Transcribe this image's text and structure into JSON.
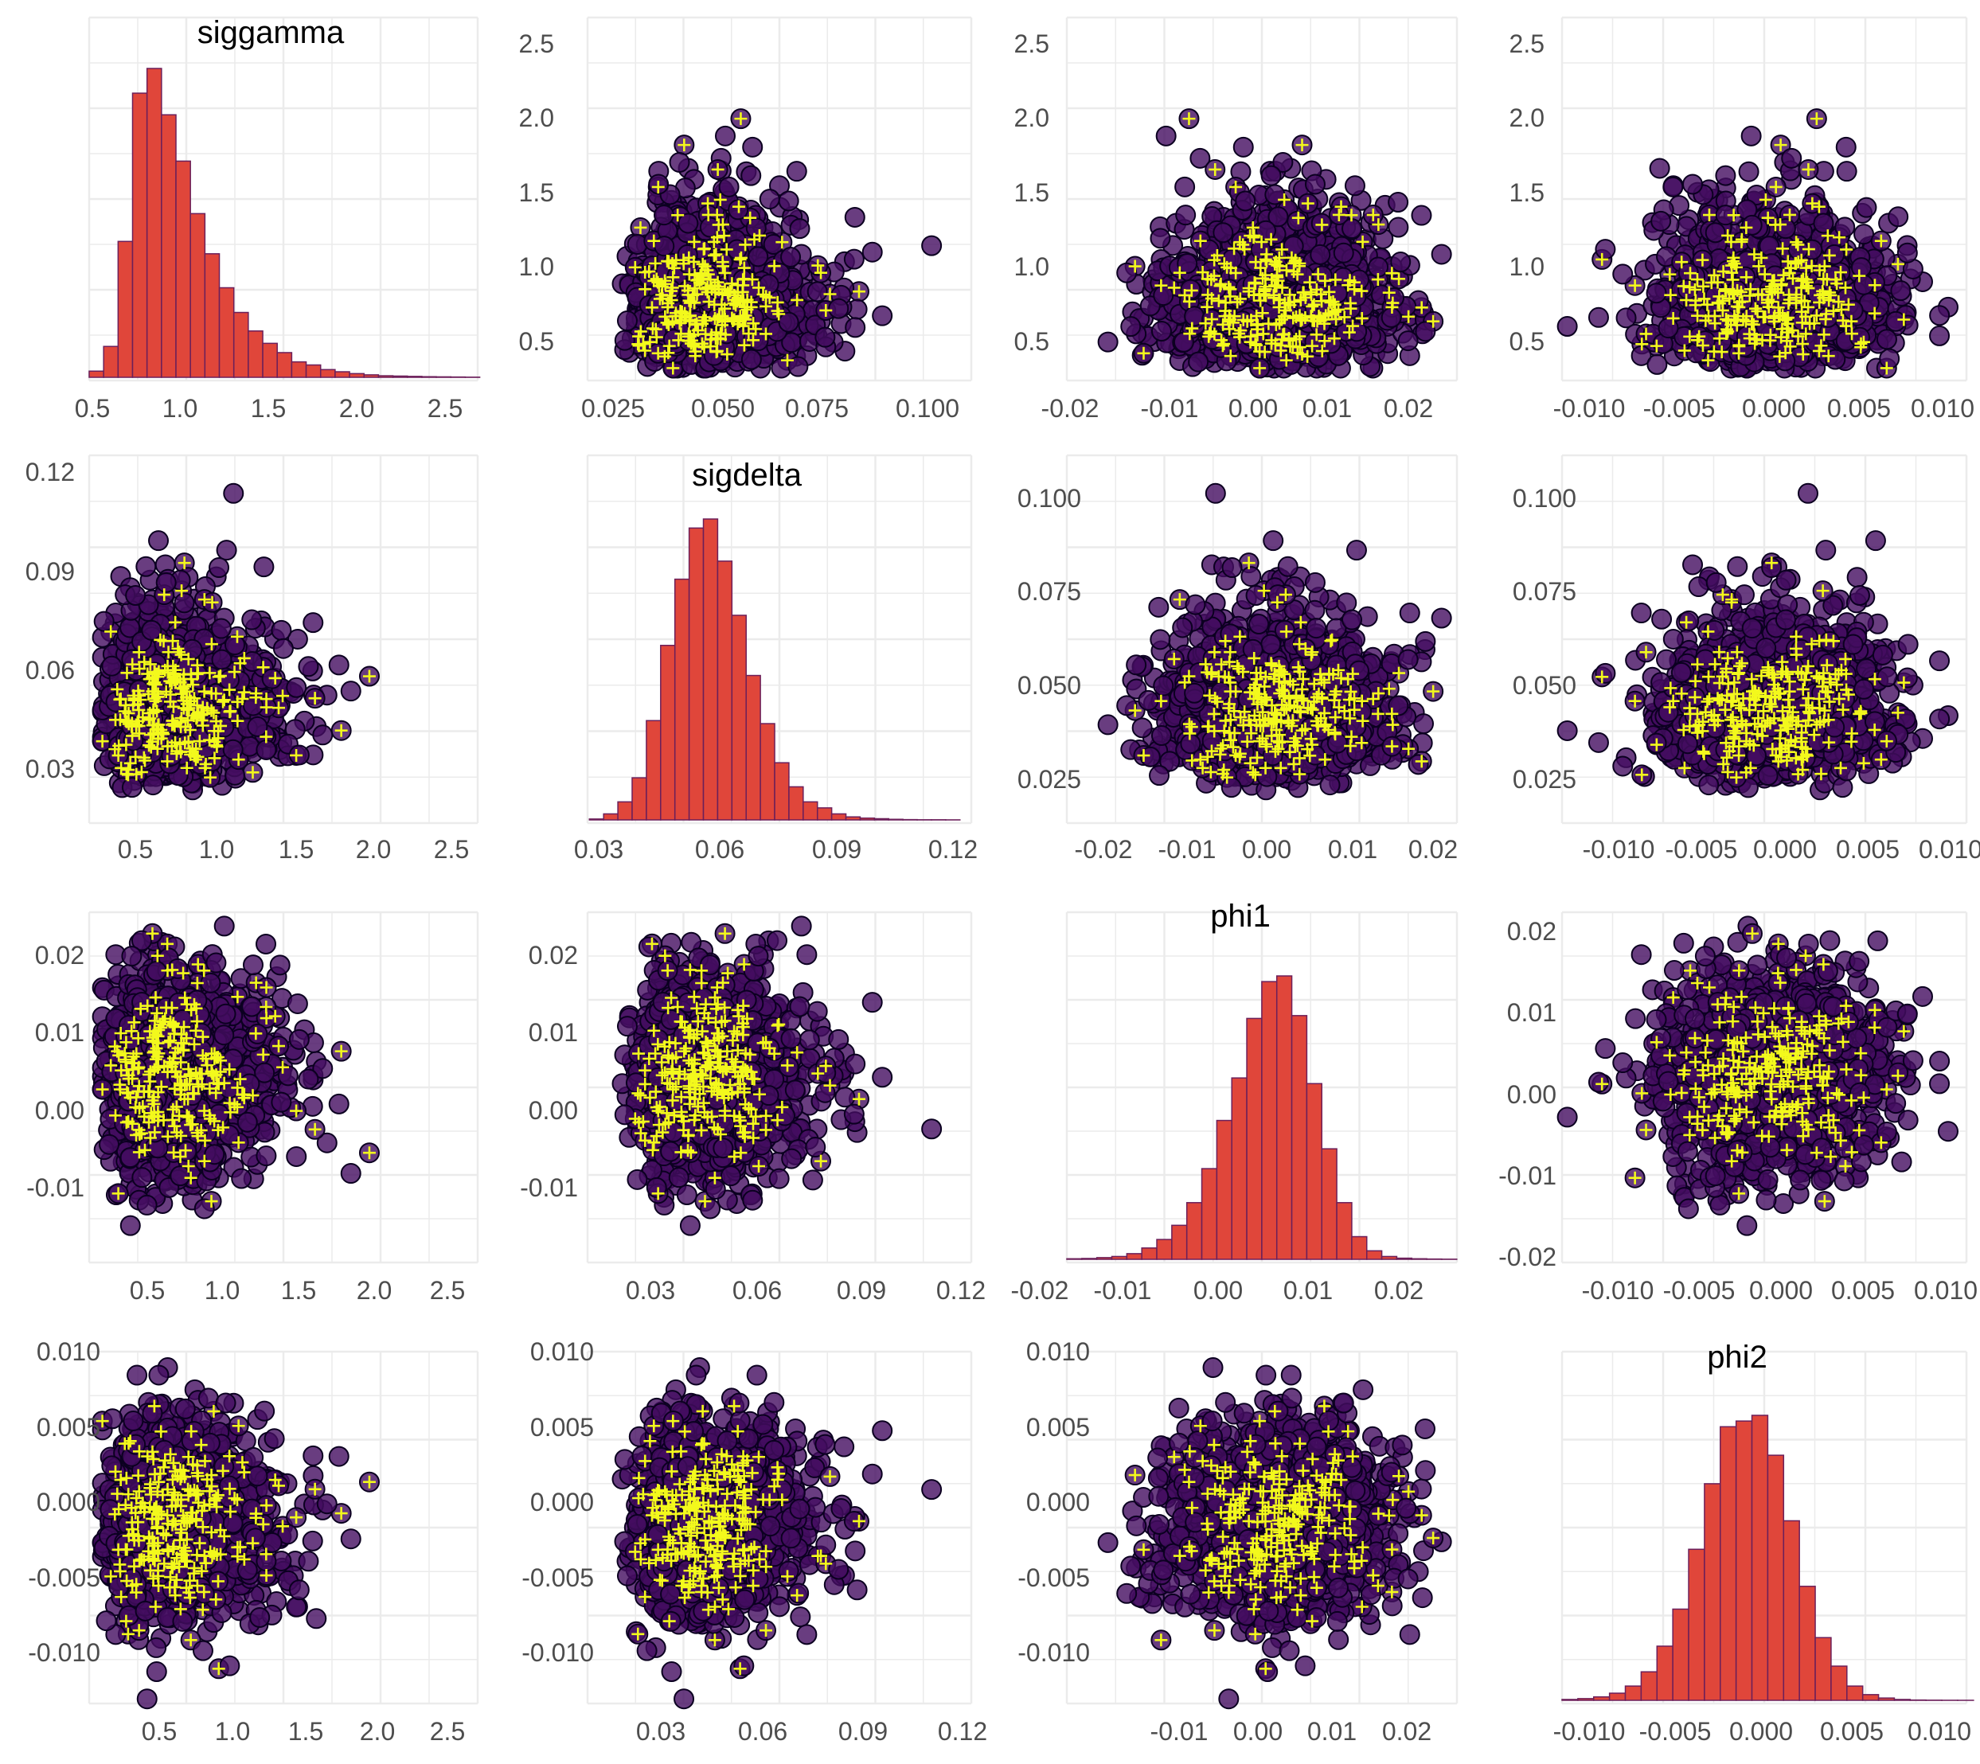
{
  "colors": {
    "background": "#ffffff",
    "grid": "#ebebeb",
    "tick_text": "#4d4d4d",
    "hist_fill": "#e0463a",
    "hist_edge": "#6b1f5a",
    "point_fill": "#440d60",
    "point_edge": "#0b0020",
    "cross": "#f3f91c"
  },
  "chart_data": {
    "type": "scatter-matrix",
    "variables": [
      "siggamma",
      "sigdelta",
      "phi1",
      "phi2"
    ],
    "variable_ranges": {
      "siggamma": [
        0.25,
        2.6
      ],
      "sigdelta": [
        0.015,
        0.12
      ],
      "phi1": [
        -0.02,
        0.025
      ],
      "phi2": [
        -0.0125,
        0.0105
      ]
    },
    "x_ticks": {
      "row0": {
        "siggamma": [
          "0.5",
          "1.0",
          "1.5",
          "2.0",
          "2.5"
        ],
        "sigdelta": [
          "0.025",
          "0.050",
          "0.075",
          "0.100"
        ],
        "phi1": [
          "-0.02",
          "-0.01",
          "0.00",
          "0.01",
          "0.02"
        ],
        "phi2": [
          "-0.010",
          "-0.005",
          "0.000",
          "0.005",
          "0.010"
        ]
      },
      "row1": {
        "siggamma": [
          "0.5",
          "1.0",
          "1.5",
          "2.0",
          "2.5"
        ],
        "sigdelta": [
          "0.03",
          "0.06",
          "0.09",
          "0.12"
        ],
        "phi1": [
          "-0.02",
          "-0.01",
          "0.00",
          "0.01",
          "0.02"
        ],
        "phi2": [
          "-0.010",
          "-0.005",
          "0.000",
          "0.005",
          "0.010"
        ]
      },
      "row2": {
        "siggamma": [
          "0.5",
          "1.0",
          "1.5",
          "2.0",
          "2.5"
        ],
        "sigdelta": [
          "0.03",
          "0.06",
          "0.09",
          "0.12"
        ],
        "phi1": [
          "-0.02",
          "-0.01",
          "0.00",
          "0.01",
          "0.02"
        ],
        "phi2": [
          "-0.010",
          "-0.005",
          "0.000",
          "0.005",
          "0.010"
        ]
      },
      "row3": {
        "siggamma": [
          "0.5",
          "1.0",
          "1.5",
          "2.0",
          "2.5"
        ],
        "sigdelta": [
          "0.03",
          "0.06",
          "0.09",
          "0.12"
        ],
        "phi1": [
          "-0.01",
          "0.00",
          "0.01",
          "0.02"
        ],
        "phi2": [
          "-0.010",
          "-0.005",
          "0.000",
          "0.005",
          "0.010"
        ]
      }
    },
    "y_ticks": {
      "siggamma": [
        "0.5",
        "1.0",
        "1.5",
        "2.0",
        "2.5"
      ],
      "sigdelta_col2": [
        "0.03",
        "0.06",
        "0.09",
        "0.12"
      ],
      "sigdelta_col3": [
        "0.025",
        "0.050",
        "0.075",
        "0.100"
      ],
      "phi1": [
        "-0.02",
        "-0.01",
        "0.00",
        "0.01",
        "0.02"
      ],
      "phi2": [
        "-0.010",
        "-0.005",
        "0.000",
        "0.005",
        "0.010"
      ]
    },
    "histograms": {
      "siggamma": {
        "bin_start": 0.25,
        "bin_width": 0.0875,
        "counts": [
          2,
          10,
          44,
          92,
          100,
          85,
          70,
          53,
          40,
          29,
          21,
          15,
          11,
          8,
          5,
          4,
          2.5,
          1.8,
          1.2,
          0.8,
          0.5,
          0.4,
          0.3,
          0.2,
          0.15,
          0.1,
          0.05
        ]
      },
      "sigdelta": {
        "bin_start": 0.0155,
        "bin_width": 0.0039,
        "counts": [
          0.3,
          2,
          6,
          14,
          33,
          58,
          80,
          97,
          100,
          86,
          68,
          48,
          32,
          19,
          11,
          6,
          4,
          2,
          1,
          0.6,
          0.4,
          0.2,
          0.1,
          0.05,
          0.05,
          0.02
        ]
      },
      "phi1": {
        "bin_start": -0.02,
        "bin_width": 0.00173,
        "counts": [
          0.2,
          0.3,
          0.6,
          1,
          2,
          4,
          7,
          12,
          20,
          32,
          49,
          64,
          85,
          98,
          100,
          86,
          62,
          39,
          20,
          8,
          3,
          1,
          0.4,
          0.2,
          0.1,
          0.05
        ]
      },
      "phi2": {
        "bin_start": -0.0125,
        "bin_width": 0.0009,
        "counts": [
          0.3,
          0.6,
          1.2,
          2.5,
          5,
          10,
          19,
          32,
          53,
          76,
          96,
          98,
          100,
          86,
          63,
          40,
          22,
          12,
          5,
          2,
          0.8,
          0.3,
          0.1,
          0.05,
          0.02,
          0.01
        ]
      }
    },
    "series": [
      {
        "role": "posterior draws",
        "marker": "filled circle"
      },
      {
        "role": "highlighted draws",
        "marker": "plus"
      }
    ]
  }
}
